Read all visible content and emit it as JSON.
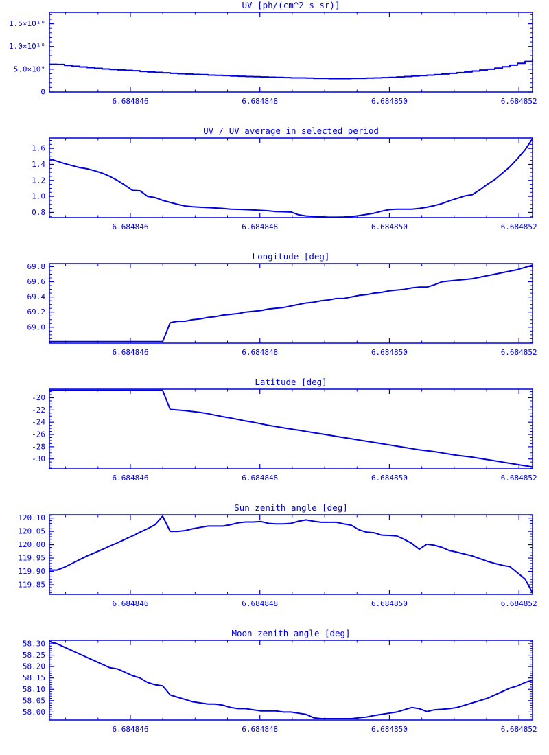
{
  "style": {
    "plot_color": "#0000E0",
    "background": "#ffffff"
  },
  "x_axis": {
    "min": 6.68484475,
    "max": 6.68485221,
    "major_tick_values": [
      6.684846,
      6.684848,
      6.68485,
      6.684852
    ],
    "major_tick_labels": [
      "6.684846",
      "6.684848",
      "6.684850",
      "6.684852"
    ],
    "minor_tick_step": 5e-07,
    "n_points": 65,
    "sampling": "uniform from min to max"
  },
  "chart_data": [
    {
      "type": "line",
      "interpolation": "step",
      "title": "UV [ph/(cm^2 s sr)]",
      "y_unit_note": "values are in units of 1e9 ph/(cm^2 s sr)",
      "ylim": [
        0,
        17.5
      ],
      "ytick_values": [
        0,
        5,
        10,
        15
      ],
      "ytick_labels": [
        "0",
        "5.0×10⁹",
        "1.0×10¹⁰",
        "1.5×10¹⁰"
      ],
      "y_minor_step": 1,
      "values": [
        6.1,
        6.05,
        5.85,
        5.65,
        5.5,
        5.35,
        5.2,
        5.05,
        4.95,
        4.85,
        4.75,
        4.65,
        4.5,
        4.4,
        4.3,
        4.2,
        4.1,
        4.0,
        3.95,
        3.85,
        3.8,
        3.7,
        3.65,
        3.6,
        3.5,
        3.45,
        3.4,
        3.35,
        3.3,
        3.25,
        3.2,
        3.15,
        3.1,
        3.1,
        3.05,
        3.0,
        3.0,
        2.95,
        2.95,
        2.95,
        3.0,
        3.0,
        3.05,
        3.1,
        3.15,
        3.2,
        3.3,
        3.4,
        3.5,
        3.6,
        3.7,
        3.8,
        3.95,
        4.1,
        4.25,
        4.4,
        4.6,
        4.8,
        5.0,
        5.25,
        5.55,
        5.9,
        6.3,
        6.7,
        7.3
      ]
    },
    {
      "type": "line",
      "interpolation": "linear",
      "title": "UV / UV average in selected period",
      "ylim": [
        0.735,
        1.73
      ],
      "ytick_values": [
        0.8,
        1.0,
        1.2,
        1.4,
        1.6
      ],
      "ytick_labels": [
        "0.8",
        "1.0",
        "1.2",
        "1.4",
        "1.6"
      ],
      "y_minor_step": 0.05,
      "values": [
        1.47,
        1.44,
        1.41,
        1.385,
        1.36,
        1.345,
        1.32,
        1.29,
        1.25,
        1.2,
        1.14,
        1.075,
        1.07,
        1.0,
        0.985,
        0.95,
        0.925,
        0.9,
        0.88,
        0.87,
        0.865,
        0.86,
        0.855,
        0.85,
        0.84,
        0.838,
        0.835,
        0.83,
        0.825,
        0.82,
        0.81,
        0.808,
        0.805,
        0.77,
        0.755,
        0.75,
        0.745,
        0.74,
        0.74,
        0.742,
        0.748,
        0.76,
        0.775,
        0.79,
        0.815,
        0.835,
        0.84,
        0.84,
        0.84,
        0.85,
        0.865,
        0.885,
        0.91,
        0.945,
        0.975,
        1.005,
        1.02,
        1.08,
        1.15,
        1.21,
        1.29,
        1.37,
        1.47,
        1.58,
        1.72
      ]
    },
    {
      "type": "line",
      "interpolation": "linear",
      "title": "Longitude [deg]",
      "ylim": [
        68.79,
        69.84
      ],
      "ytick_values": [
        69.0,
        69.2,
        69.4,
        69.6,
        69.8
      ],
      "ytick_labels": [
        "69.0",
        "69.2",
        "69.4",
        "69.6",
        "69.8"
      ],
      "y_minor_step": 0.05,
      "values": [
        68.81,
        68.81,
        68.81,
        68.81,
        68.81,
        68.81,
        68.81,
        68.81,
        68.81,
        68.81,
        68.81,
        68.81,
        68.81,
        68.81,
        68.81,
        68.81,
        69.06,
        69.08,
        69.08,
        69.1,
        69.11,
        69.13,
        69.14,
        69.16,
        69.17,
        69.18,
        69.2,
        69.21,
        69.22,
        69.24,
        69.25,
        69.26,
        69.28,
        69.3,
        69.32,
        69.33,
        69.35,
        69.36,
        69.38,
        69.38,
        69.4,
        69.42,
        69.43,
        69.45,
        69.46,
        69.48,
        69.49,
        69.5,
        69.52,
        69.53,
        69.53,
        69.56,
        69.6,
        69.61,
        69.62,
        69.63,
        69.64,
        69.66,
        69.68,
        69.7,
        69.72,
        69.74,
        69.76,
        69.79,
        69.82
      ]
    },
    {
      "type": "line",
      "interpolation": "linear",
      "title": "Latitude [deg]",
      "ylim": [
        -31.6,
        -18.6
      ],
      "ytick_values": [
        -30,
        -28,
        -26,
        -24,
        -22,
        -20
      ],
      "ytick_labels": [
        "-30",
        "-28",
        "-26",
        "-24",
        "-22",
        "-20"
      ],
      "y_minor_step": 0.5,
      "values": [
        -18.8,
        -18.8,
        -18.8,
        -18.8,
        -18.8,
        -18.8,
        -18.8,
        -18.8,
        -18.8,
        -18.8,
        -18.8,
        -18.8,
        -18.8,
        -18.8,
        -18.8,
        -18.8,
        -21.9,
        -22.0,
        -22.1,
        -22.25,
        -22.4,
        -22.6,
        -22.85,
        -23.1,
        -23.3,
        -23.55,
        -23.8,
        -24.0,
        -24.25,
        -24.5,
        -24.7,
        -24.9,
        -25.1,
        -25.3,
        -25.5,
        -25.7,
        -25.9,
        -26.1,
        -26.3,
        -26.5,
        -26.7,
        -26.9,
        -27.1,
        -27.3,
        -27.5,
        -27.7,
        -27.9,
        -28.1,
        -28.3,
        -28.5,
        -28.65,
        -28.8,
        -29.0,
        -29.2,
        -29.4,
        -29.55,
        -29.7,
        -29.9,
        -30.1,
        -30.3,
        -30.5,
        -30.7,
        -30.9,
        -31.1,
        -31.3
      ]
    },
    {
      "type": "line",
      "interpolation": "linear",
      "title": "Sun zenith angle [deg]",
      "ylim": [
        119.814,
        120.112
      ],
      "ytick_values": [
        119.85,
        119.9,
        119.95,
        120.0,
        120.05,
        120.1
      ],
      "ytick_labels": [
        "119.85",
        "119.90",
        "119.95",
        "120.00",
        "120.05",
        "120.10"
      ],
      "y_minor_step": 0.01,
      "values": [
        119.905,
        119.905,
        119.916,
        119.93,
        119.944,
        119.958,
        119.97,
        119.982,
        119.995,
        120.007,
        120.02,
        120.033,
        120.047,
        120.06,
        120.075,
        120.107,
        120.05,
        120.05,
        120.053,
        120.06,
        120.065,
        120.07,
        120.07,
        120.07,
        120.075,
        120.082,
        120.085,
        120.085,
        120.087,
        120.08,
        120.078,
        120.078,
        120.08,
        120.088,
        120.093,
        120.088,
        120.084,
        120.084,
        120.084,
        120.078,
        120.073,
        120.056,
        120.047,
        120.045,
        120.036,
        120.035,
        120.033,
        120.02,
        120.005,
        119.983,
        120.002,
        119.998,
        119.99,
        119.978,
        119.972,
        119.965,
        119.958,
        119.948,
        119.938,
        119.93,
        119.923,
        119.918,
        119.895,
        119.872,
        119.82
      ]
    },
    {
      "type": "line",
      "interpolation": "linear",
      "title": "Moon zenith angle [deg]",
      "ylim": [
        57.965,
        58.315
      ],
      "ytick_values": [
        58.0,
        58.05,
        58.1,
        58.15,
        58.2,
        58.25,
        58.3
      ],
      "ytick_labels": [
        "58.00",
        "58.05",
        "58.10",
        "58.15",
        "58.20",
        "58.25",
        "58.30"
      ],
      "y_minor_step": 0.01,
      "values": [
        58.31,
        58.3,
        58.285,
        58.27,
        58.255,
        58.24,
        58.225,
        58.21,
        58.195,
        58.19,
        58.175,
        58.16,
        58.15,
        58.13,
        58.12,
        58.115,
        58.075,
        58.065,
        58.055,
        58.045,
        58.04,
        58.035,
        58.035,
        58.03,
        58.02,
        58.015,
        58.015,
        58.01,
        58.005,
        58.005,
        58.005,
        58.0,
        58.0,
        57.995,
        57.99,
        57.975,
        57.971,
        57.971,
        57.971,
        57.971,
        57.971,
        57.975,
        57.978,
        57.985,
        57.99,
        57.995,
        58.0,
        58.01,
        58.02,
        58.015,
        58.002,
        58.01,
        58.012,
        58.015,
        58.02,
        58.03,
        58.04,
        58.05,
        58.06,
        58.075,
        58.09,
        58.105,
        58.115,
        58.13,
        58.14
      ]
    }
  ]
}
